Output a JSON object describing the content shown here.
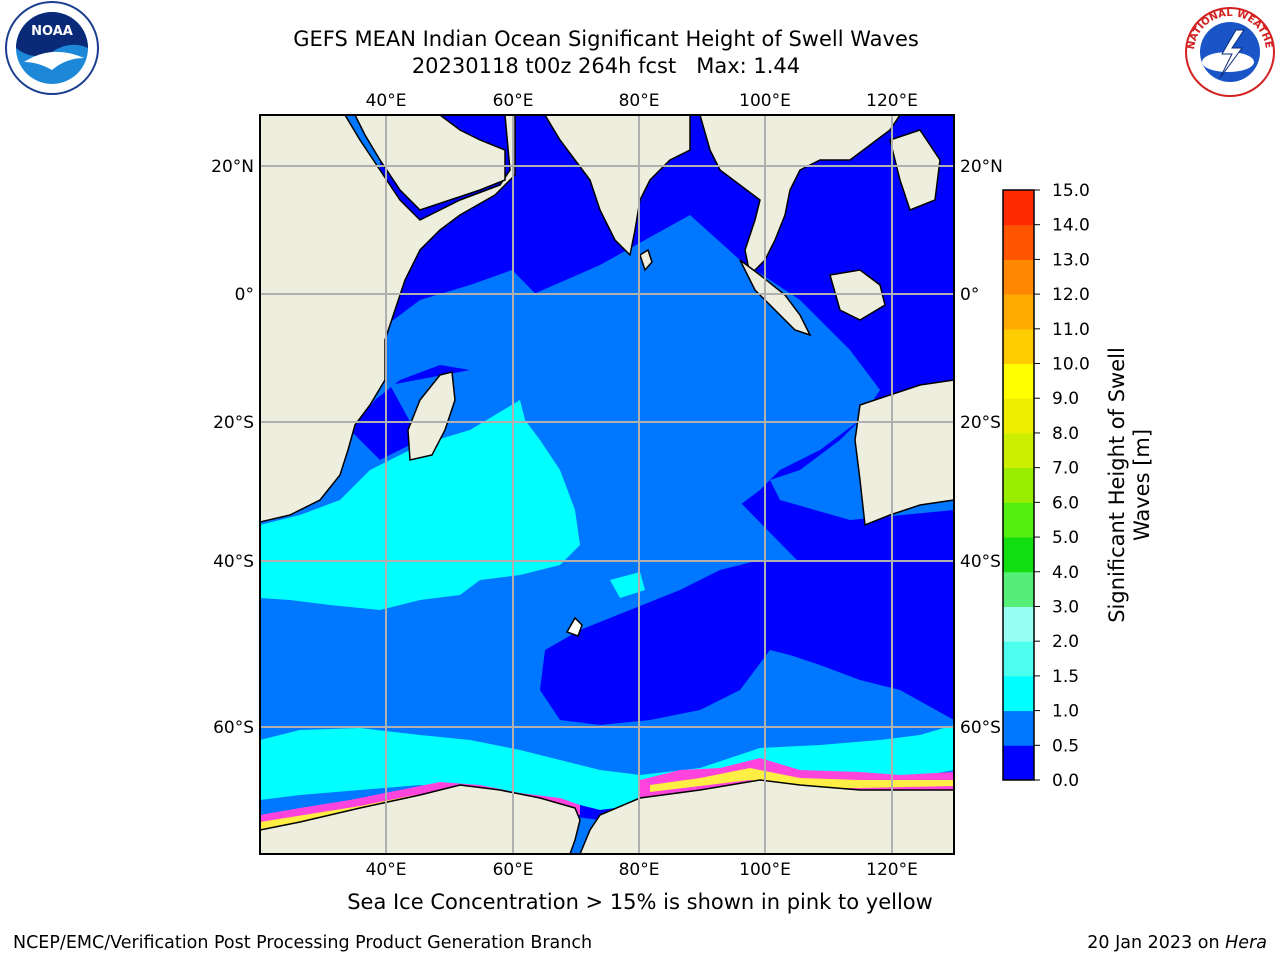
{
  "title": {
    "line1": "GEFS MEAN Indian Ocean Significant Height of Swell Waves",
    "line2": "20230118 t00z 264h fcst   Max: 1.44"
  },
  "map": {
    "lon_ticks": [
      "40°E",
      "60°E",
      "80°E",
      "100°E",
      "120°E"
    ],
    "lat_ticks_left": [
      "20°N",
      "0°",
      "20°S",
      "40°S",
      "60°S"
    ],
    "lat_ticks_right": [
      "20°N",
      "0°",
      "20°S",
      "40°S",
      "60°S"
    ],
    "lon_range": [
      20,
      130
    ],
    "lat_range": [
      -73,
      28
    ],
    "grid": true
  },
  "colorbar": {
    "title": "Significant Height of Swell Waves [m]",
    "title_line1": "Significant Height of Swell",
    "title_line2": "Waves [m]",
    "levels": [
      "0.0",
      "0.5",
      "1.0",
      "1.5",
      "2.0",
      "3.0",
      "4.0",
      "5.0",
      "6.0",
      "7.0",
      "8.0",
      "9.0",
      "10.0",
      "11.0",
      "12.0",
      "13.0",
      "14.0",
      "15.0"
    ],
    "colors": [
      "#0000ff",
      "#0077ff",
      "#00ffff",
      "#4dffee",
      "#99fff5",
      "#55ee77",
      "#11dd11",
      "#55ee11",
      "#99ee00",
      "#ccee00",
      "#eeee00",
      "#ffff00",
      "#ffcc00",
      "#ffaa00",
      "#ff8800",
      "#ff5500",
      "#ff2a00",
      "#ff0000"
    ]
  },
  "colors": {
    "land": "#eeeedf",
    "swell_0_05": "#0000ff",
    "swell_05_1": "#0077ff",
    "swell_1_15": "#00ffff",
    "ice_low": "#ff44dd",
    "ice_high": "#ffee44",
    "grid": "#b0b0b0"
  },
  "caption": "Sea Ice Concentration > 15% is shown in pink to yellow",
  "footer": {
    "left": "NCEP/EMC/Verification Post Processing Product Generation Branch",
    "right_date": "20 Jan 2023 on ",
    "right_host": "Hera"
  },
  "logos": {
    "left": "noaa-logo",
    "right": "nws-logo",
    "nws_text": "NATIONAL WEATHER SERVICE",
    "noaa_text": "NOAA"
  }
}
